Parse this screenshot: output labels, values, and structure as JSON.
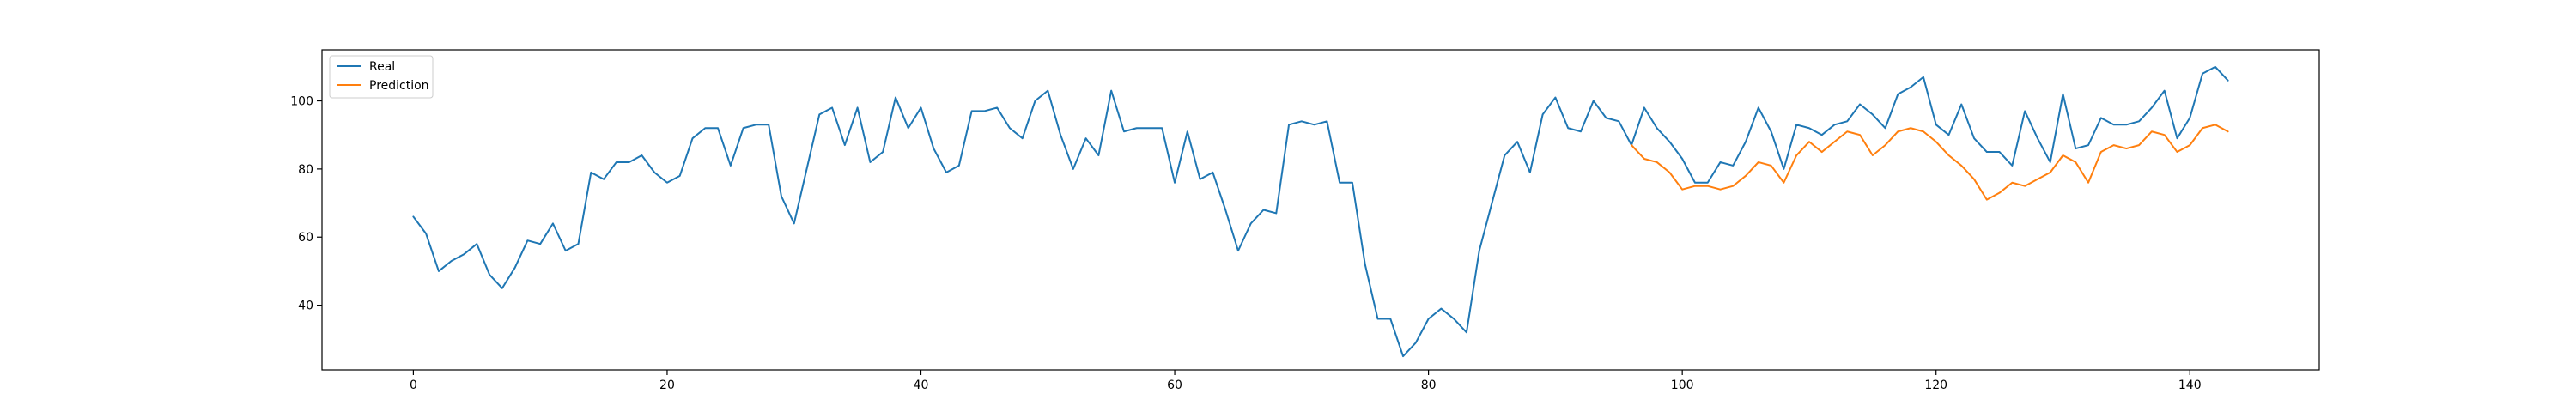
{
  "chart_data": {
    "type": "line",
    "title": "",
    "xlabel": "",
    "ylabel": "",
    "xlim": [
      -7.2,
      150.2
    ],
    "ylim": [
      21.0,
      115.0
    ],
    "xticks": [
      0,
      20,
      40,
      60,
      80,
      100,
      120,
      140
    ],
    "yticks": [
      40,
      60,
      80,
      100
    ],
    "grid": false,
    "legend_position": "top-left",
    "series": [
      {
        "name": "Real",
        "color": "#1f77b4",
        "x_start": 0,
        "values": [
          66,
          61,
          50,
          53,
          55,
          58,
          49,
          45,
          51,
          59,
          58,
          64,
          56,
          58,
          79,
          77,
          82,
          82,
          84,
          79,
          76,
          78,
          89,
          92,
          92,
          81,
          92,
          93,
          93,
          72,
          64,
          80,
          96,
          98,
          87,
          98,
          82,
          85,
          101,
          92,
          98,
          86,
          79,
          81,
          97,
          97,
          98,
          92,
          89,
          100,
          103,
          90,
          80,
          89,
          84,
          103,
          91,
          92,
          92,
          92,
          76,
          91,
          77,
          79,
          68,
          56,
          64,
          68,
          67,
          93,
          94,
          93,
          94,
          76,
          76,
          52,
          36,
          36,
          25,
          29,
          36,
          39,
          36,
          32,
          56,
          70,
          84,
          88,
          79,
          96,
          101,
          92,
          91,
          100,
          95,
          94,
          87,
          98,
          92,
          88,
          83,
          76,
          76,
          82,
          81,
          88,
          98,
          91,
          80,
          93,
          92,
          90,
          93,
          94,
          99,
          96,
          92,
          102,
          104,
          107,
          93,
          90,
          99,
          89,
          85,
          85,
          81,
          97,
          89,
          82,
          102,
          86,
          87,
          95,
          93,
          93,
          94,
          98,
          103,
          89,
          95,
          108,
          110,
          106
        ]
      },
      {
        "name": "Prediction",
        "color": "#ff7f0e",
        "x_start": 96,
        "values": [
          87,
          83,
          82,
          79,
          74,
          75,
          75,
          74,
          75,
          78,
          82,
          81,
          76,
          84,
          88,
          85,
          88,
          91,
          90,
          84,
          87,
          91,
          92,
          91,
          88,
          84,
          81,
          77,
          71,
          73,
          76,
          75,
          77,
          79,
          84,
          82,
          76,
          85,
          87,
          86,
          87,
          91,
          90,
          85,
          87,
          92,
          93,
          91
        ]
      }
    ]
  }
}
